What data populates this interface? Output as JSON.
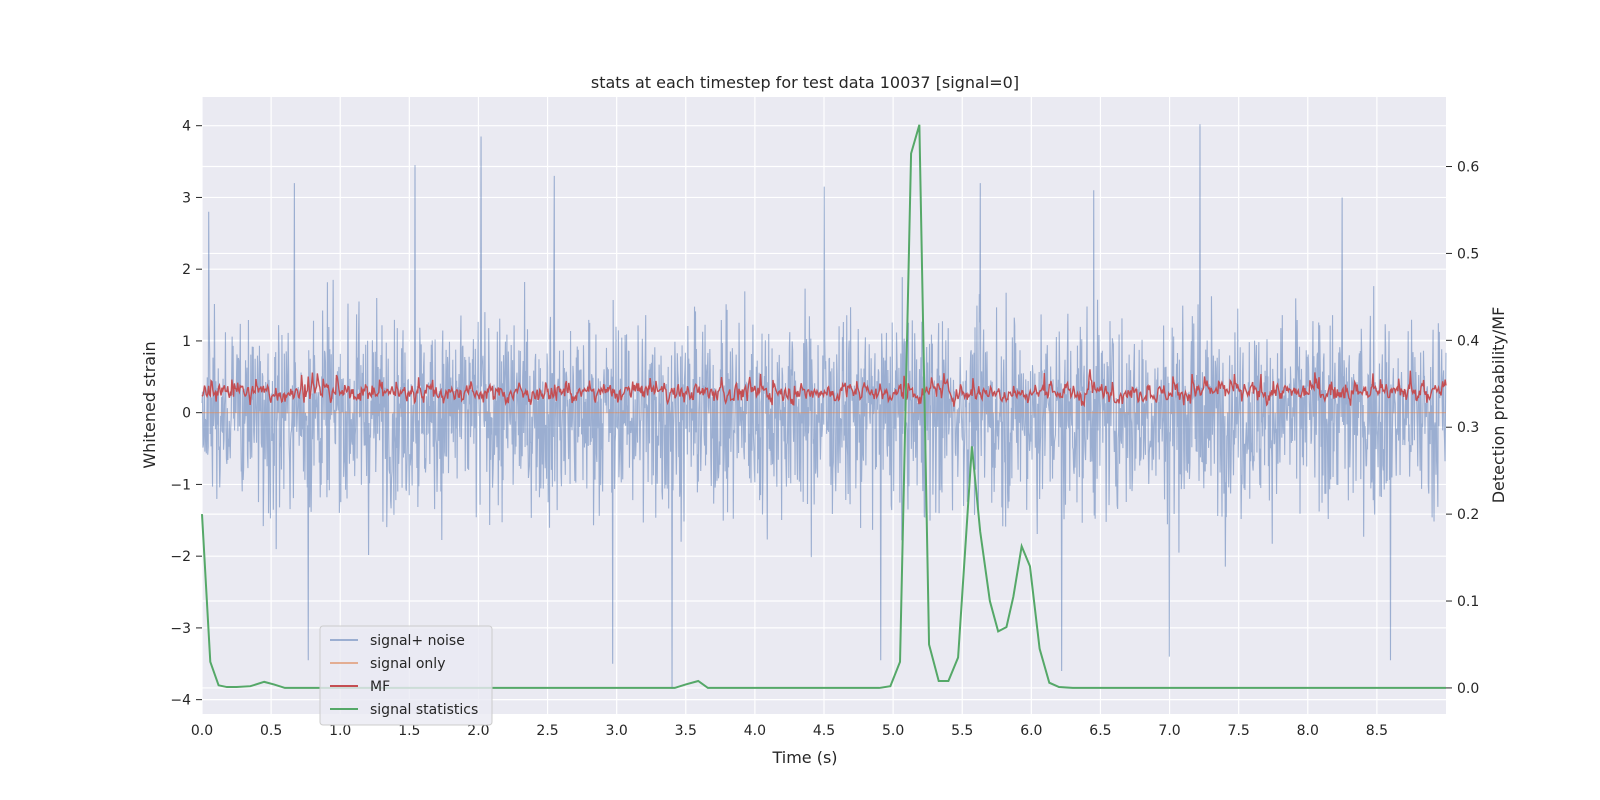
{
  "chart_data": {
    "type": "line",
    "title": "stats at each timestep for test data 10037 [signal=0]",
    "xlabel": "Time (s)",
    "ylabel": "Whitened strain",
    "y2label": "Detection probability/MF",
    "xlim": [
      0.0,
      9.0
    ],
    "ylim": [
      -4.2,
      4.4
    ],
    "y2lim": [
      -0.03,
      0.68
    ],
    "xticks": [
      "0.0",
      "0.5",
      "1.0",
      "1.5",
      "2.0",
      "2.5",
      "3.0",
      "3.5",
      "4.0",
      "4.5",
      "5.0",
      "5.5",
      "6.0",
      "6.5",
      "7.0",
      "7.5",
      "8.0",
      "8.5"
    ],
    "yticks": [
      "4",
      "3",
      "2",
      "1",
      "0",
      "−1",
      "−2",
      "−3",
      "−4"
    ],
    "y2ticks": [
      "0.6",
      "0.5",
      "0.4",
      "0.3",
      "0.2",
      "0.1",
      "0.0"
    ],
    "grid": true,
    "legend_position": "lower-left",
    "colors": {
      "background": "#eaeaf2",
      "grid": "#ffffff",
      "noise": "#4c72b0",
      "signal_only": "#dd8452",
      "mf": "#c44e52",
      "stat": "#55a868"
    },
    "series": [
      {
        "name": "signal+ noise",
        "axis": "left",
        "description": "dense whitened strain, approx. between -3.9 and 4.0 (peaks near t=1.54, 2.02, 7.22)",
        "peaks": [
          [
            0.05,
            2.8
          ],
          [
            0.67,
            3.2
          ],
          [
            1.54,
            3.45
          ],
          [
            2.02,
            3.85
          ],
          [
            2.55,
            3.3
          ],
          [
            4.5,
            3.15
          ],
          [
            5.63,
            3.2
          ],
          [
            6.45,
            3.1
          ],
          [
            7.22,
            4.02
          ],
          [
            8.25,
            3.0
          ],
          [
            0.77,
            -3.45
          ],
          [
            2.97,
            -3.5
          ],
          [
            3.4,
            -3.85
          ],
          [
            4.91,
            -3.45
          ],
          [
            6.22,
            -3.6
          ],
          [
            7.0,
            -3.4
          ],
          [
            8.6,
            -3.45
          ]
        ]
      },
      {
        "name": "signal only",
        "axis": "left",
        "x": [
          0.0,
          9.0
        ],
        "y": [
          0.0,
          0.0
        ]
      },
      {
        "name": "MF",
        "axis": "left",
        "description": "matched filter output, approx. between 0 and 0.95"
      },
      {
        "name": "signal statistics",
        "axis": "right",
        "x": [
          0.0,
          0.06,
          0.12,
          0.18,
          0.25,
          0.35,
          0.45,
          0.52,
          0.6,
          0.8,
          1.0,
          2.0,
          3.0,
          3.42,
          3.5,
          3.59,
          3.66,
          3.75,
          4.0,
          4.5,
          4.9,
          4.98,
          5.05,
          5.13,
          5.19,
          5.26,
          5.33,
          5.4,
          5.47,
          5.53,
          5.57,
          5.63,
          5.7,
          5.76,
          5.82,
          5.87,
          5.93,
          5.99,
          6.06,
          6.13,
          6.2,
          6.3,
          7.0,
          8.0,
          9.0
        ],
        "y": [
          0.2,
          0.03,
          0.003,
          0.001,
          0.001,
          0.002,
          0.007,
          0.004,
          0.0,
          0.0,
          0.0,
          0.0,
          0.0,
          0.0,
          0.004,
          0.008,
          0.0,
          0.0,
          0.0,
          0.0,
          0.0,
          0.002,
          0.03,
          0.615,
          0.648,
          0.05,
          0.008,
          0.008,
          0.035,
          0.18,
          0.278,
          0.18,
          0.1,
          0.065,
          0.07,
          0.105,
          0.163,
          0.14,
          0.045,
          0.006,
          0.001,
          0.0,
          0.0,
          0.0,
          0.0
        ]
      }
    ]
  }
}
